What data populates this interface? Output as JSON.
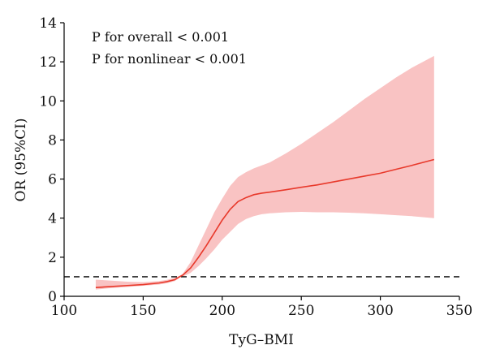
{
  "chart_data": {
    "type": "line",
    "title": "",
    "xlabel": "TyG–BMI",
    "ylabel": "OR (95%CI)",
    "xlim": [
      100,
      350
    ],
    "ylim": [
      0,
      14
    ],
    "xticks": [
      100,
      150,
      200,
      250,
      300,
      350
    ],
    "yticks": [
      0,
      2,
      4,
      6,
      8,
      10,
      12,
      14
    ],
    "reference_line": {
      "y": 1,
      "style": "dashed",
      "color": "#000000"
    },
    "annotations": [
      "P for overall < 0.001",
      "P for nonlinear < 0.001"
    ],
    "grid": false,
    "legend": "none",
    "series": [
      {
        "x": [
          120,
          130,
          140,
          150,
          160,
          165,
          170,
          173,
          175,
          180,
          185,
          190,
          195,
          200,
          205,
          210,
          215,
          220,
          225,
          230,
          240,
          250,
          260,
          270,
          280,
          290,
          300,
          310,
          320,
          334
        ],
        "y": [
          0.45,
          0.5,
          0.55,
          0.6,
          0.68,
          0.75,
          0.85,
          1.0,
          1.08,
          1.45,
          2.0,
          2.6,
          3.25,
          3.9,
          4.45,
          4.85,
          5.05,
          5.2,
          5.28,
          5.33,
          5.45,
          5.58,
          5.7,
          5.85,
          6.0,
          6.15,
          6.3,
          6.5,
          6.7,
          7.0
        ],
        "lower": [
          0.35,
          0.42,
          0.48,
          0.54,
          0.6,
          0.67,
          0.78,
          0.95,
          1.0,
          1.2,
          1.55,
          1.95,
          2.4,
          2.9,
          3.3,
          3.7,
          3.95,
          4.1,
          4.2,
          4.25,
          4.3,
          4.32,
          4.3,
          4.3,
          4.28,
          4.25,
          4.2,
          4.15,
          4.1,
          4.0
        ],
        "upper": [
          0.85,
          0.8,
          0.75,
          0.72,
          0.78,
          0.84,
          0.95,
          1.05,
          1.15,
          1.75,
          2.6,
          3.45,
          4.3,
          5.0,
          5.65,
          6.1,
          6.35,
          6.55,
          6.7,
          6.85,
          7.3,
          7.8,
          8.35,
          8.9,
          9.5,
          10.1,
          10.65,
          11.2,
          11.7,
          12.3
        ],
        "line_color": "#e8392b",
        "band_color": "#f9c3c3"
      }
    ]
  }
}
